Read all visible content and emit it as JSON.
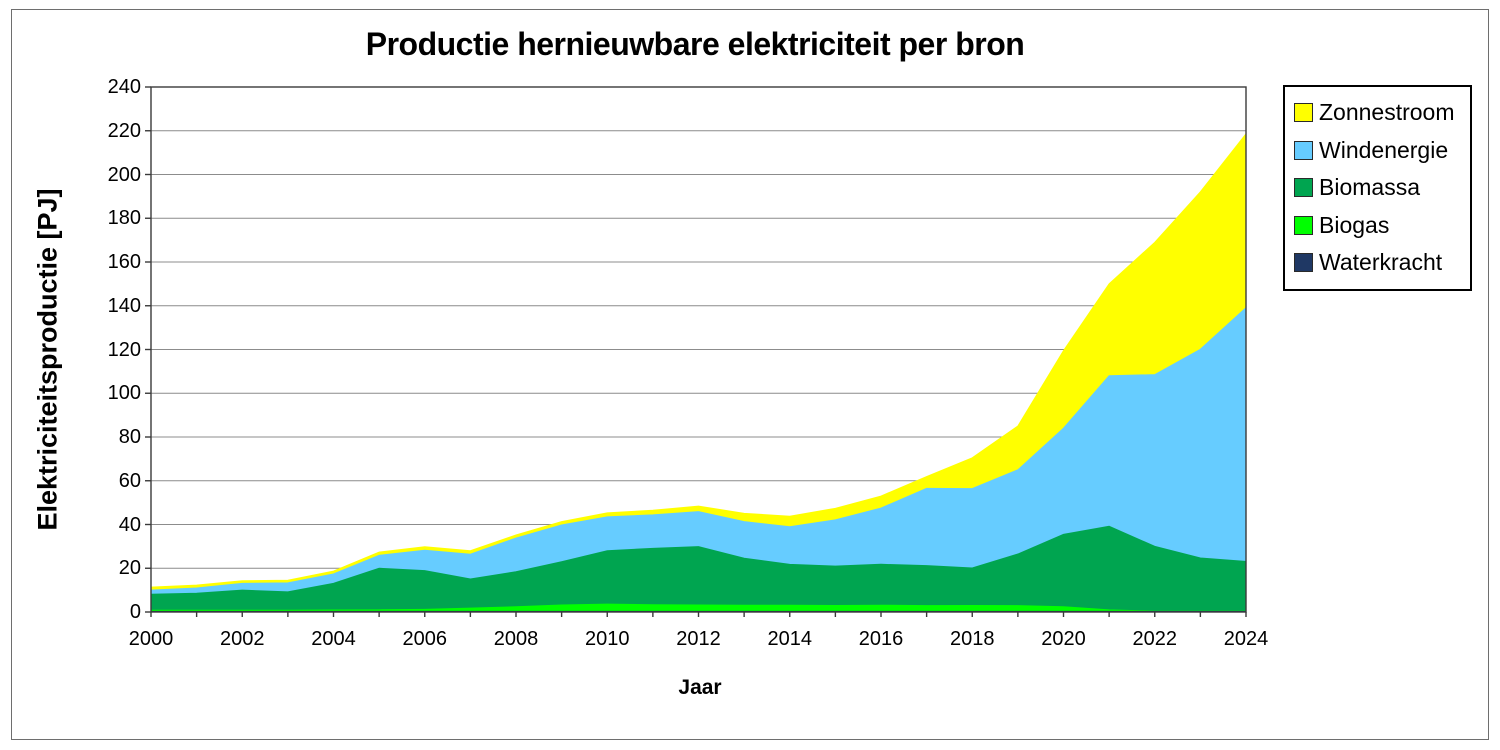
{
  "title": "Productie hernieuwbare elektriciteit per bron",
  "legend": {
    "position": "top-right",
    "items": [
      {
        "label": "Zonnestroom",
        "color": "#FFFF00"
      },
      {
        "label": "Windenergie",
        "color": "#66CCFF"
      },
      {
        "label": "Biomassa",
        "color": "#00A550"
      },
      {
        "label": "Biogas",
        "color": "#00FF00"
      },
      {
        "label": "Waterkracht",
        "color": "#1F3864"
      }
    ]
  },
  "chart_data": {
    "type": "area",
    "stacked": true,
    "title": "Productie hernieuwbare elektriciteit per bron",
    "xlabel": "Jaar",
    "ylabel": "Elektriciteitsproductie [PJ]",
    "ylim": [
      0,
      240
    ],
    "ytick_step": 20,
    "grid": "horizontal-gray",
    "legend_position": "top-right",
    "x": [
      2000,
      2001,
      2002,
      2003,
      2004,
      2005,
      2006,
      2007,
      2008,
      2009,
      2010,
      2011,
      2012,
      2013,
      2014,
      2015,
      2016,
      2017,
      2018,
      2019,
      2020,
      2021,
      2022,
      2023,
      2024
    ],
    "xtick_labels": [
      "2000",
      "2002",
      "2004",
      "2006",
      "2008",
      "2010",
      "2012",
      "2014",
      "2016",
      "2018",
      "2020",
      "2022",
      "2024"
    ],
    "series": [
      {
        "name": "Waterkracht",
        "color": "#1F3864",
        "values": [
          0.3,
          0.3,
          0.3,
          0.3,
          0.3,
          0.3,
          0.3,
          0.3,
          0.3,
          0.3,
          0.3,
          0.3,
          0.3,
          0.3,
          0.3,
          0.3,
          0.3,
          0.3,
          0.3,
          0.3,
          0.3,
          0.3,
          0.3,
          0.3,
          0.3
        ]
      },
      {
        "name": "Biogas",
        "color": "#00FF00",
        "values": [
          0.5,
          0.5,
          0.5,
          0.5,
          0.6,
          0.7,
          0.9,
          1.5,
          2.1,
          2.9,
          3.3,
          3.0,
          2.9,
          2.8,
          2.8,
          2.7,
          2.8,
          2.6,
          2.7,
          2.6,
          2.1,
          0.7,
          0.1,
          0.1,
          0.1
        ]
      },
      {
        "name": "Biomassa",
        "color": "#00A550",
        "values": [
          7.3,
          7.8,
          9.2,
          8.4,
          12.2,
          19.0,
          17.7,
          13.3,
          16.0,
          19.8,
          24.4,
          25.8,
          26.7,
          21.5,
          18.7,
          18.0,
          18.7,
          18.3,
          17.1,
          23.6,
          33.1,
          38.2,
          29.6,
          24.3,
          22.7
        ]
      },
      {
        "name": "Windenergie",
        "color": "#66CCFF",
        "values": [
          1.9,
          2.4,
          3.1,
          4.1,
          4.3,
          5.9,
          9.3,
          11.3,
          15.4,
          16.8,
          15.5,
          15.3,
          16.0,
          16.7,
          17.2,
          21.1,
          25.7,
          35.3,
          36.3,
          38.5,
          48.5,
          68.8,
          78.5,
          95.4,
          116.0
        ]
      },
      {
        "name": "Zonnestroom",
        "color": "#FFFF00",
        "values": [
          1.4,
          1.3,
          1.2,
          1.2,
          1.3,
          1.5,
          1.6,
          1.6,
          1.4,
          1.5,
          1.8,
          2.1,
          2.5,
          3.8,
          4.8,
          5.3,
          5.5,
          5.4,
          14.1,
          20.0,
          35.5,
          42.0,
          60.5,
          72.0,
          79.5
        ]
      }
    ]
  }
}
